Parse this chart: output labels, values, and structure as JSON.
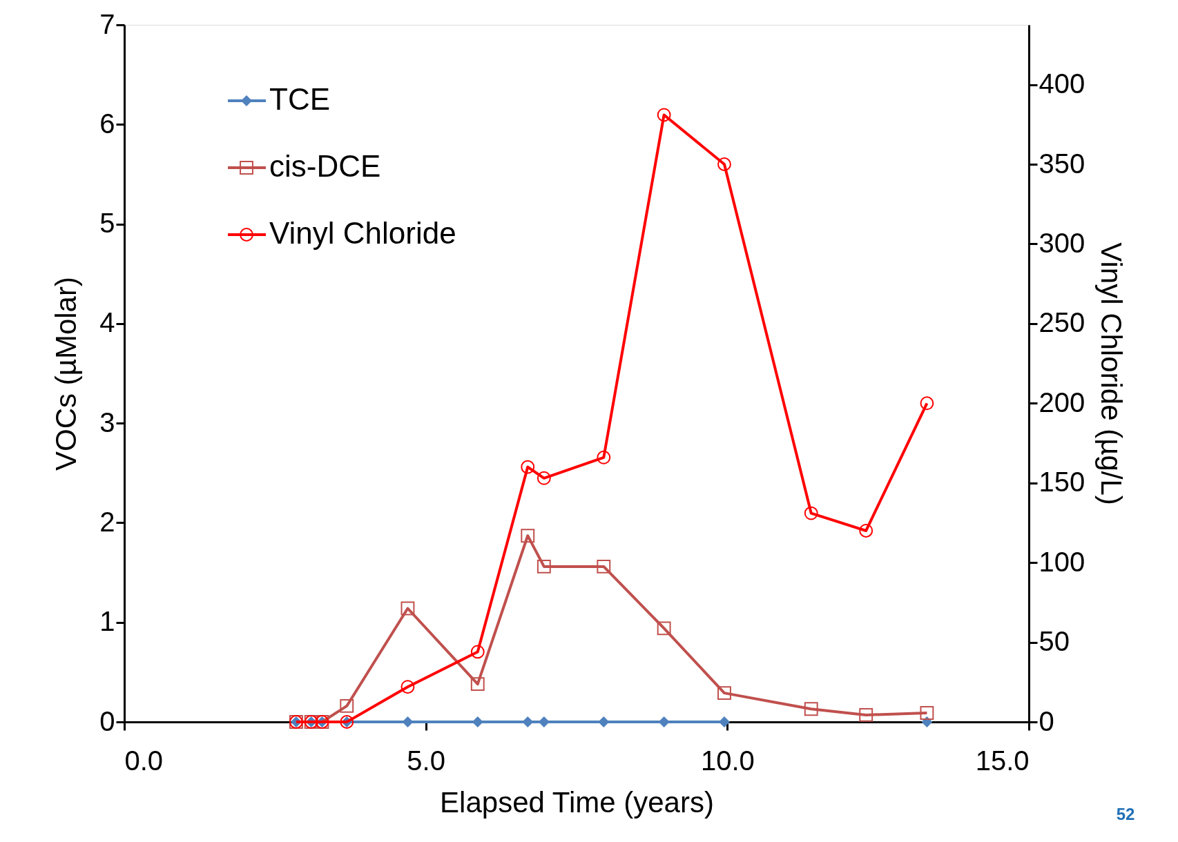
{
  "chart_data": {
    "type": "line",
    "xlabel": "Elapsed Time (years)",
    "ylabel": "VOCs (µMolar)",
    "y2label": "Vinyl Chloride (µg/L)",
    "x": [
      2.85,
      3.1,
      3.28,
      3.69,
      4.7,
      5.86,
      6.69,
      6.96,
      7.95,
      8.95,
      9.95,
      11.39,
      12.3,
      13.31
    ],
    "xlim": [
      0,
      15
    ],
    "xticks": [
      {
        "value": 0,
        "label": "0.0"
      },
      {
        "value": 5,
        "label": "5.0"
      },
      {
        "value": 10,
        "label": "10.0"
      },
      {
        "value": 15,
        "label": "15.0"
      }
    ],
    "ylim": [
      0,
      7
    ],
    "yticks": [
      0,
      1,
      2,
      3,
      4,
      5,
      6,
      7
    ],
    "y2lim": [
      0,
      437.5
    ],
    "y2ticks": [
      0,
      50,
      100,
      150,
      200,
      250,
      300,
      350,
      400
    ],
    "legend": "top left",
    "grid": false,
    "line_style": "solid",
    "annotations": [
      "52"
    ],
    "series": [
      {
        "name": "TCE",
        "color": "#4f81bd",
        "marker": "diamond",
        "values": [
          0,
          0,
          0,
          0,
          0,
          0,
          0,
          0,
          0,
          0,
          0,
          null,
          null,
          0
        ]
      },
      {
        "name": "cis-DCE",
        "color": "#c0504d",
        "marker": "square",
        "values": [
          0,
          0,
          0,
          0.16,
          1.14,
          0.38,
          1.87,
          1.56,
          1.56,
          0.94,
          0.29,
          0.13,
          0.07,
          0.09
        ]
      },
      {
        "name": "Vinyl Chloride",
        "color": "#ff0000",
        "marker": "circle",
        "axis": "y2",
        "values": [
          0,
          0,
          0,
          0,
          22,
          44,
          160,
          153,
          166,
          381,
          350,
          131,
          120,
          200
        ]
      }
    ]
  }
}
